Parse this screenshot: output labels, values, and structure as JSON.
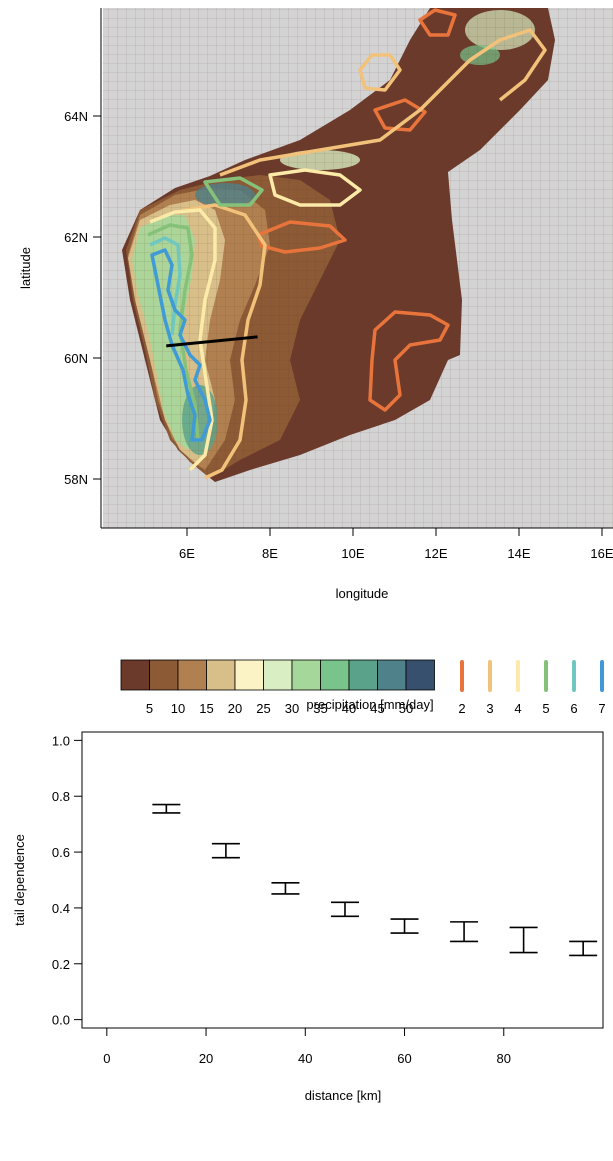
{
  "map_panel": {
    "xlabel": "longitude",
    "ylabel": "latitude",
    "x_ticks": [
      "6E",
      "8E",
      "10E",
      "12E",
      "14E",
      "16E"
    ],
    "y_ticks": [
      "58N",
      "60N",
      "62N",
      "64N"
    ],
    "background_color": "#d3d3d3",
    "transect_line": {
      "lon": [
        5.5,
        7.7
      ],
      "lat": [
        60.2,
        60.35
      ]
    }
  },
  "colorbar": {
    "label": "precipitation [mm/day]",
    "tick_labels": [
      "5",
      "10",
      "15",
      "20",
      "25",
      "30",
      "35",
      "40",
      "45",
      "50"
    ],
    "colors": [
      "#6b3a2a",
      "#8c5a35",
      "#b08050",
      "#d8bf8a",
      "#fbf3c6",
      "#d9eec2",
      "#a6d79a",
      "#78c48a",
      "#5aa38a",
      "#4e8189",
      "#37506e"
    ]
  },
  "contour_legend": {
    "labels": [
      "2",
      "3",
      "4",
      "5",
      "6",
      "7"
    ],
    "colors": [
      "#e8743b",
      "#f2c27a",
      "#fbeaa8",
      "#86c17a",
      "#6fc7c0",
      "#3f9ad6"
    ]
  },
  "chart_data": {
    "type": "errorbar",
    "title": "",
    "xlabel": "distance [km]",
    "ylabel": "tail dependence",
    "xlim": [
      -5,
      100
    ],
    "ylim": [
      -0.03,
      1.03
    ],
    "x_ticks": [
      0,
      20,
      40,
      60,
      80
    ],
    "x_tick_labels": [
      "0",
      "20",
      "40",
      "60",
      "80"
    ],
    "y_ticks": [
      0.0,
      0.2,
      0.4,
      0.6,
      0.8,
      1.0
    ],
    "y_tick_labels": [
      "0.0",
      "0.2",
      "0.4",
      "0.6",
      "0.8",
      "1.0"
    ],
    "grid": false,
    "series": [
      {
        "x": [
          12,
          24,
          36,
          48,
          60,
          72,
          84,
          96
        ],
        "lower": [
          0.74,
          0.58,
          0.45,
          0.37,
          0.31,
          0.28,
          0.24,
          0.23
        ],
        "upper": [
          0.77,
          0.63,
          0.49,
          0.42,
          0.36,
          0.35,
          0.33,
          0.28
        ]
      }
    ]
  }
}
